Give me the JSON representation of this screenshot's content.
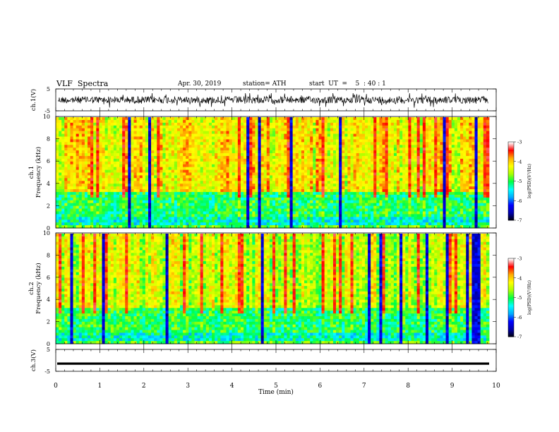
{
  "header": {
    "title": "VLF  Spectra",
    "date": "Apr. 30, 2019",
    "station": "station= ATH",
    "start": "start  UT  =    5  : 40 : 1"
  },
  "chart_data": [
    {
      "type": "line",
      "panel": "ch1-waveform",
      "ylabel": "ch.1(V)",
      "ylim": [
        -5,
        5
      ],
      "yticks": [
        "5",
        "-5"
      ],
      "xlim": [
        0,
        10
      ],
      "description_color": "#000000"
    },
    {
      "type": "heatmap",
      "panel": "ch1-spectrogram",
      "ylabel": "ch.1\nFrequency  (kHz)",
      "ylabel_top": "ch.1",
      "ylabel_bottom": "Frequency  (kHz)",
      "ylim": [
        0,
        10
      ],
      "yticks": [
        "0",
        "2",
        "4",
        "6",
        "8",
        "10"
      ],
      "xlim": [
        0,
        10
      ],
      "colorbar": {
        "label": "log(PSD)(V²/Hz)",
        "range": [
          -7,
          -3
        ],
        "ticks": [
          "-3",
          "-4",
          "-5",
          "-6",
          "-7"
        ],
        "colors": [
          "#000000",
          "#0000aa",
          "#0000ff",
          "#00aaff",
          "#00ffff",
          "#00ff44",
          "#aaff00",
          "#ffff00",
          "#ffaa00",
          "#ff0000",
          "#ffffff"
        ]
      }
    },
    {
      "type": "heatmap",
      "panel": "ch2-spectrogram",
      "ylabel_top": "ch.2",
      "ylabel_bottom": "Frequency  (kHz)",
      "ylim": [
        0,
        10
      ],
      "yticks": [
        "0",
        "2",
        "4",
        "6",
        "8",
        "10"
      ],
      "xlim": [
        0,
        10
      ],
      "colorbar": {
        "label": "log(PSD)(V²/Hz)",
        "range": [
          -7,
          -3
        ],
        "ticks": [
          "-3",
          "-4",
          "-5",
          "-6",
          "-7"
        ]
      }
    },
    {
      "type": "line",
      "panel": "ch3-waveform",
      "ylabel": "ch.3(V)",
      "ylim": [
        -5,
        5
      ],
      "yticks": [
        "5",
        "-5"
      ],
      "y_value": -1.5,
      "xlim": [
        0,
        10
      ],
      "xlabel": "Time  (min)",
      "xticks": [
        "0",
        "1",
        "2",
        "3",
        "4",
        "5",
        "6",
        "7",
        "8",
        "9",
        "10"
      ]
    }
  ]
}
